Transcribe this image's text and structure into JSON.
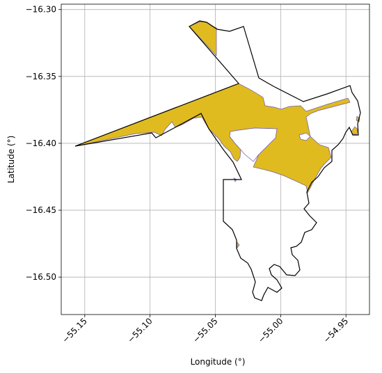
{
  "map": {
    "xlabel": "Longitude (°)",
    "ylabel": "Latitude (°)",
    "xlim": [
      -55.168,
      -54.932
    ],
    "ylim": [
      -16.528,
      -16.296
    ],
    "xticks": [
      -55.15,
      -55.1,
      -55.05,
      -55.0,
      -54.95
    ],
    "xtick_labels": [
      "−55.15",
      "−55.10",
      "−55.05",
      "−55.00",
      "−54.95"
    ],
    "yticks": [
      -16.3,
      -16.35,
      -16.4,
      -16.45,
      -16.5
    ],
    "ytick_labels": [
      "−16.30",
      "−16.35",
      "−16.40",
      "−16.45",
      "−16.50"
    ],
    "grid": true,
    "colors": {
      "fill": "#e0bb1f",
      "fill_edge": "#6f5aa8",
      "outline": "#000000",
      "grid": "#b0b0b0"
    }
  }
}
